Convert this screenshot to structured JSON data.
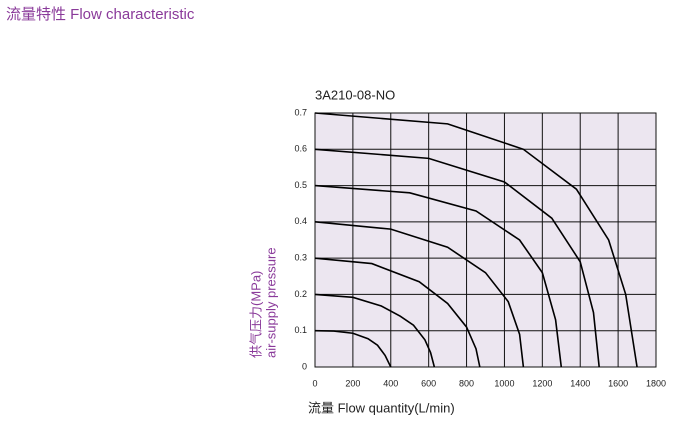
{
  "chart_data": {
    "type": "line",
    "header": "流量特性 Flow characteristic",
    "title": "3A210-08-NO",
    "y_label": [
      "供气压力(MPa)",
      "air-supply pressure"
    ],
    "x_label": "流量 Flow quantity(L/min)",
    "xlim": [
      0,
      1800
    ],
    "xticks": [
      0,
      200,
      400,
      600,
      800,
      1000,
      1200,
      1400,
      1600,
      1800
    ],
    "ylim": [
      0,
      0.7
    ],
    "yticks": [
      0,
      0.1,
      0.2,
      0.3,
      0.4,
      0.5,
      0.6,
      0.7
    ],
    "grid": true,
    "background": "#ece6f0",
    "series": [
      {
        "color": "#000000",
        "x": [
          0,
          100,
          200,
          280,
          330,
          370,
          400
        ],
        "values": [
          0.1,
          0.099,
          0.093,
          0.078,
          0.06,
          0.032,
          0
        ]
      },
      {
        "color": "#000000",
        "x": [
          0,
          200,
          350,
          450,
          520,
          580,
          610,
          630
        ],
        "values": [
          0.2,
          0.192,
          0.168,
          0.14,
          0.115,
          0.075,
          0.04,
          0
        ]
      },
      {
        "color": "#000000",
        "x": [
          0,
          300,
          550,
          700,
          800,
          850,
          870
        ],
        "values": [
          0.3,
          0.285,
          0.235,
          0.175,
          0.11,
          0.05,
          0
        ]
      },
      {
        "color": "#000000",
        "x": [
          0,
          400,
          700,
          900,
          1020,
          1080,
          1100
        ],
        "values": [
          0.4,
          0.38,
          0.33,
          0.26,
          0.18,
          0.09,
          0
        ]
      },
      {
        "color": "#000000",
        "x": [
          0,
          500,
          850,
          1080,
          1200,
          1270,
          1300
        ],
        "values": [
          0.5,
          0.48,
          0.43,
          0.35,
          0.26,
          0.13,
          0
        ]
      },
      {
        "color": "#000000",
        "x": [
          0,
          600,
          1000,
          1250,
          1400,
          1470,
          1500
        ],
        "values": [
          0.6,
          0.575,
          0.51,
          0.41,
          0.29,
          0.15,
          0
        ]
      },
      {
        "color": "#000000",
        "x": [
          0,
          700,
          1100,
          1380,
          1550,
          1640,
          1700
        ],
        "values": [
          0.7,
          0.67,
          0.6,
          0.49,
          0.35,
          0.2,
          0
        ]
      }
    ]
  }
}
